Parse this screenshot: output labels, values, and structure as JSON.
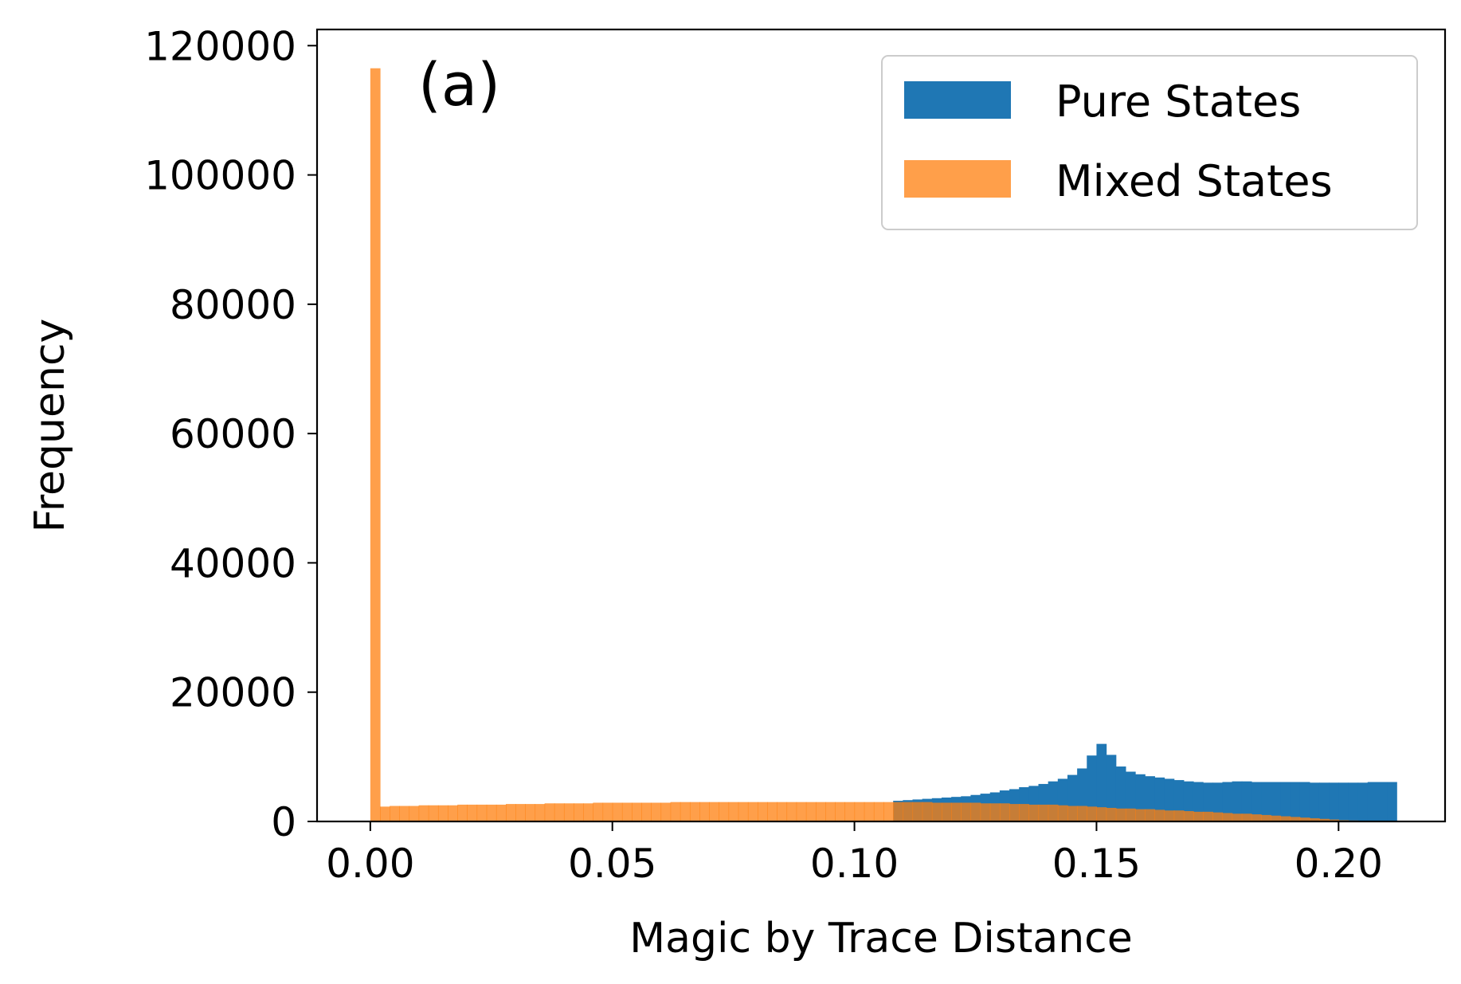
{
  "chart_data": {
    "type": "histogram",
    "panel_label": "(a)",
    "xlabel": "Magic by Trace Distance",
    "ylabel": "Frequency",
    "xlim": [
      -0.011,
      0.222
    ],
    "ylim": [
      0,
      122500
    ],
    "x_ticks": [
      0.0,
      0.05,
      0.1,
      0.15,
      0.2
    ],
    "x_tick_labels": [
      "0.00",
      "0.05",
      "0.10",
      "0.15",
      "0.20"
    ],
    "y_ticks": [
      0,
      20000,
      40000,
      60000,
      80000,
      100000,
      120000
    ],
    "y_tick_labels": [
      "0",
      "20000",
      "40000",
      "60000",
      "80000",
      "100000",
      "120000"
    ],
    "grid": false,
    "legend_position": "top-right",
    "bin_range": [
      0.0,
      0.212
    ],
    "series": [
      {
        "name": "Pure States",
        "color": "#1f77b4",
        "opacity": 1,
        "values": [
          0,
          0,
          0,
          0,
          0,
          0,
          0,
          0,
          0,
          0,
          0,
          0,
          0,
          0,
          0,
          0,
          0,
          0,
          0,
          0,
          0,
          0,
          0,
          0,
          0,
          0,
          0,
          0,
          0,
          0,
          0,
          0,
          0,
          0,
          0,
          0,
          0,
          0,
          0,
          0,
          0,
          0,
          0,
          0,
          0,
          0,
          0,
          0,
          0,
          0,
          0,
          0,
          0,
          0,
          3200,
          3300,
          3400,
          3500,
          3600,
          3700,
          3800,
          3900,
          4100,
          4300,
          4500,
          4800,
          5000,
          5300,
          5500,
          5800,
          6200,
          6600,
          7200,
          8200,
          10200,
          12000,
          10300,
          8500,
          7700,
          7300,
          7000,
          6800,
          6600,
          6400,
          6200,
          6100,
          6000,
          6000,
          6100,
          6200,
          6200,
          6100,
          6100,
          6100,
          6100,
          6100,
          6100,
          6000,
          6000,
          6000,
          6000,
          6000,
          6000,
          6100,
          6100,
          6100
        ]
      },
      {
        "name": "Mixed States",
        "color": "#ff7f0e",
        "opacity": 0.75,
        "values": [
          116500,
          2300,
          2400,
          2400,
          2400,
          2500,
          2500,
          2500,
          2500,
          2600,
          2600,
          2600,
          2600,
          2600,
          2700,
          2700,
          2700,
          2700,
          2800,
          2800,
          2800,
          2800,
          2800,
          2900,
          2900,
          2900,
          2900,
          2900,
          2900,
          2900,
          2900,
          3000,
          3000,
          3000,
          3000,
          3000,
          3000,
          3000,
          3000,
          3000,
          3000,
          3000,
          3000,
          3000,
          3000,
          3000,
          3000,
          3000,
          3000,
          3000,
          3000,
          3000,
          3000,
          3000,
          3000,
          3000,
          3000,
          3000,
          2900,
          2900,
          2900,
          2900,
          2900,
          2800,
          2800,
          2800,
          2700,
          2700,
          2600,
          2600,
          2600,
          2500,
          2400,
          2400,
          2300,
          2200,
          2100,
          2000,
          2000,
          1900,
          1900,
          1800,
          1700,
          1700,
          1600,
          1500,
          1500,
          1400,
          1300,
          1200,
          1200,
          1100,
          1000,
          900,
          800,
          700,
          600,
          500,
          400,
          300,
          200,
          150,
          100,
          50,
          20,
          0
        ]
      }
    ]
  }
}
